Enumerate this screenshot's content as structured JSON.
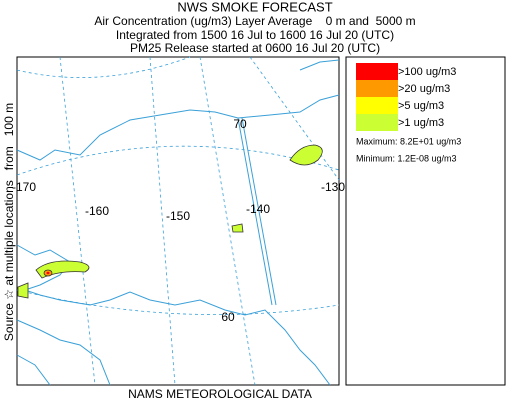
{
  "header": {
    "title": "NWS SMOKE FORECAST",
    "lines": [
      "Air Concentration (ug/m3) Layer Average    0 m and  5000 m",
      "Integrated from 1500 16 Jul to 1600 16 Jul 20 (UTC)",
      "PM25 Release started at 0600 16 Jul 20 (UTC)"
    ]
  },
  "side_label": "Source ☆ at multiple locations   from   100 m",
  "map": {
    "grid_labels": [
      "-170",
      "-160",
      "-150",
      "-140",
      "-130",
      "70",
      "60"
    ]
  },
  "footer": "NAMS METEOROLOGICAL DATA",
  "legend": {
    "items": [
      {
        "label": ">100 ug/m3",
        "color": "#ff0000"
      },
      {
        "label": ">20 ug/m3",
        "color": "#ff9900"
      },
      {
        "label": ">5 ug/m3",
        "color": "#ffff00"
      },
      {
        "label": ">1 ug/m3",
        "color": "#ccff33"
      }
    ],
    "maximum": "Maximum: 8.2E+01 ug/m3",
    "minimum": "Minimum: 1.2E-08 ug/m3"
  }
}
